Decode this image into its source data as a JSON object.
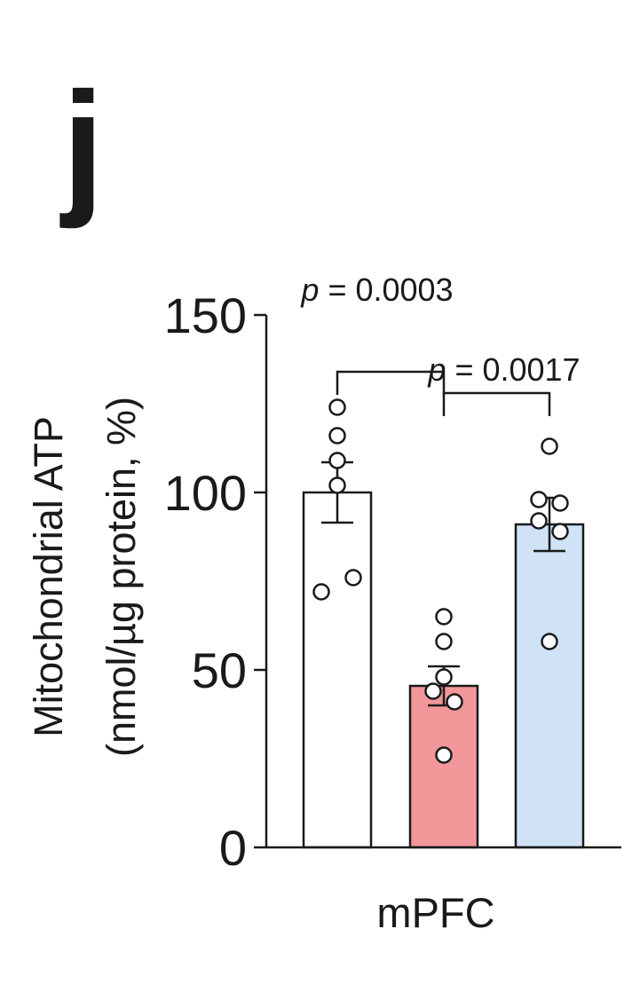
{
  "panel_label": "j",
  "chart_data": {
    "type": "bar",
    "title": "",
    "xlabel": "mPFC",
    "ylabel_line1": "Mitochondrial ATP",
    "ylabel_line2": "(nmol/µg protein, %)",
    "ylim": [
      0,
      150
    ],
    "yticks": [
      0,
      50,
      100,
      150
    ],
    "ytick_labels": [
      "0",
      "50",
      "100",
      "150"
    ],
    "bars": [
      {
        "mean": 100,
        "sem": 8.5,
        "color": "#ffffff",
        "points": [
          124,
          116,
          109,
          102,
          72,
          76
        ]
      },
      {
        "mean": 45.5,
        "sem": 5.5,
        "color": "#f29799",
        "points": [
          65,
          58,
          48,
          44,
          41,
          26
        ]
      },
      {
        "mean": 91,
        "sem": 7.5,
        "color": "#cfe2f6",
        "points": [
          113,
          98,
          97,
          92,
          89,
          58
        ]
      }
    ],
    "comparisons": [
      {
        "from": 0,
        "to": 1,
        "p_label": "p",
        "p_value": "= 0.0003"
      },
      {
        "from": 1,
        "to": 2,
        "p_label": "p",
        "p_value": "= 0.0017"
      }
    ]
  }
}
